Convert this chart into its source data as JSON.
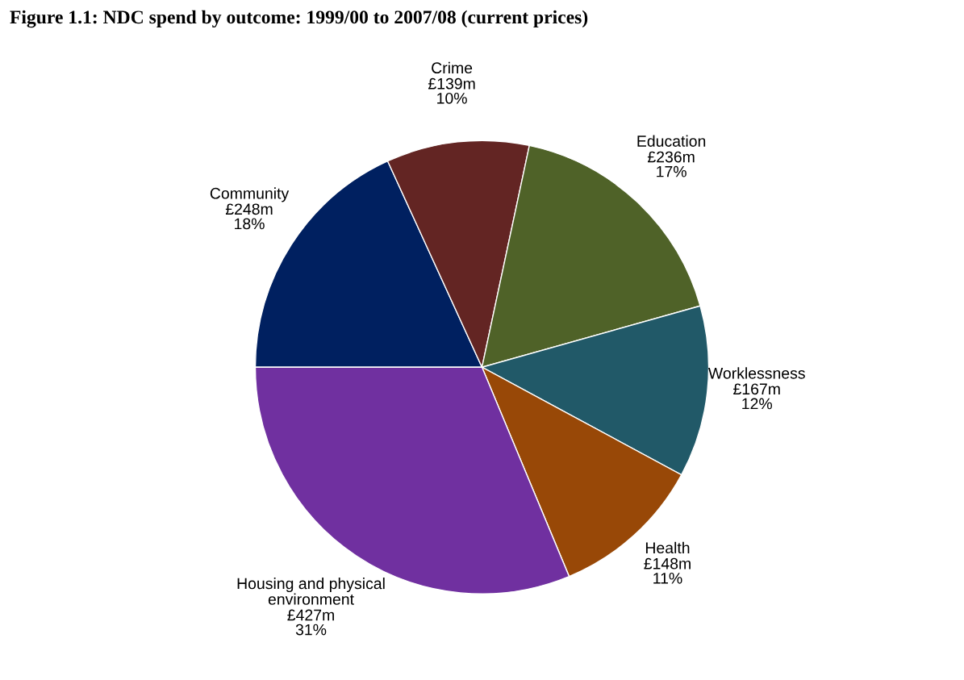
{
  "chart_data": {
    "type": "pie",
    "title": "Figure 1.1: NDC spend by outcome: 1999/00 to 2007/08 (current prices)",
    "categories": [
      "Community",
      "Crime",
      "Education",
      "Worklessness",
      "Health",
      "Housing and physical environment"
    ],
    "values": [
      248,
      139,
      236,
      167,
      148,
      427
    ],
    "value_labels": [
      "£248m",
      "£139m",
      "£236m",
      "£167m",
      "£148m",
      "£427m"
    ],
    "annotations": [
      "18%",
      "10%",
      "17%",
      "12%",
      "11%",
      "31%"
    ],
    "colors": [
      "#002060",
      "#632523",
      "#4f6228",
      "#215968",
      "#984807",
      "#7030a0"
    ]
  }
}
